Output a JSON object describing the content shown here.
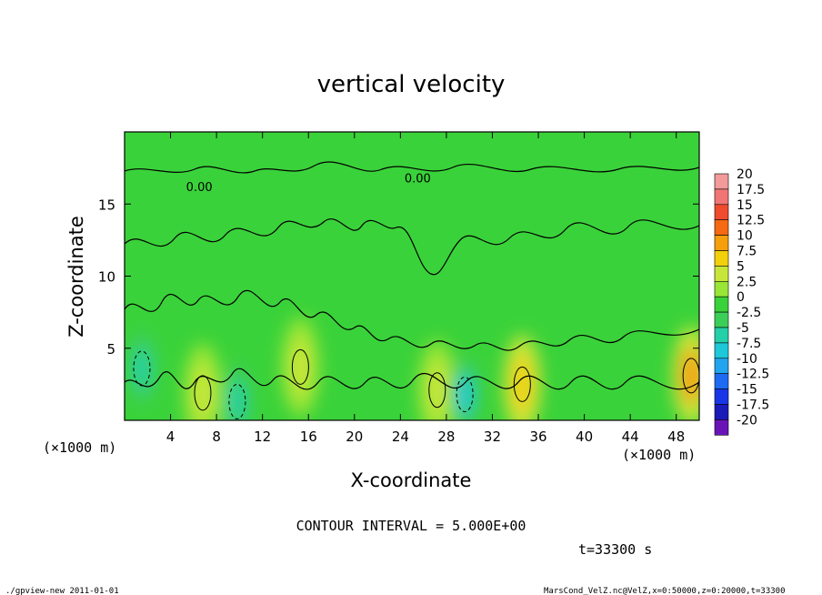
{
  "chart_data": {
    "type": "heatmap",
    "title": "vertical velocity",
    "xlabel": "X-coordinate",
    "ylabel": "Z-coordinate",
    "x_unit_left": "(×1000 m)",
    "x_unit_right": "(×1000 m)",
    "xlim": [
      0,
      50
    ],
    "ylim": [
      0,
      20
    ],
    "x_ticks": [
      4,
      8,
      12,
      16,
      20,
      24,
      28,
      32,
      36,
      40,
      44,
      48
    ],
    "y_ticks": [
      5,
      10,
      15
    ],
    "contour_interval_text": "CONTOUR INTERVAL = 5.000E+00",
    "time_text": "t=33300 s",
    "colorbar": {
      "labels": [
        "20",
        "17.5",
        "15",
        "12.5",
        "10",
        "7.5",
        "5",
        "2.5",
        "0",
        "-2.5",
        "-5",
        "-7.5",
        "-10",
        "-12.5",
        "-15",
        "-17.5",
        "-20"
      ],
      "colors": [
        "#f39a9a",
        "#f27575",
        "#ef4b2e",
        "#f56a12",
        "#f59f0c",
        "#f2d10c",
        "#c8e63a",
        "#9ae636",
        "#3ad23a",
        "#3ccf58",
        "#24d0a8",
        "#1ec8d8",
        "#22a4ef",
        "#1f6af2",
        "#1836e6",
        "#1a1ab8",
        "#6a14b8"
      ]
    },
    "features": [
      {
        "kind": "updraft",
        "x": 6.8,
        "z": 1.9,
        "value": 5
      },
      {
        "kind": "updraft",
        "x": 15.3,
        "z": 3.7,
        "value": 5
      },
      {
        "kind": "updraft",
        "x": 27.2,
        "z": 2.1,
        "value": 5
      },
      {
        "kind": "updraft",
        "x": 34.6,
        "z": 2.5,
        "value": 7.5
      },
      {
        "kind": "updraft",
        "x": 49.3,
        "z": 3.1,
        "value": 10
      },
      {
        "kind": "downdraft",
        "x": 29.6,
        "z": 1.8,
        "value": -7.5
      },
      {
        "kind": "downdraft",
        "x": 1.5,
        "z": 3.6,
        "value": -5
      },
      {
        "kind": "downdraft",
        "x": 9.8,
        "z": 1.3,
        "value": -5
      }
    ],
    "contour_labels": [
      {
        "text": "0.00",
        "x": 6.5,
        "z": 15.9
      },
      {
        "text": "0.00",
        "x": 25.5,
        "z": 16.5
      }
    ]
  },
  "footer": {
    "left": "./gpview-new  2011-01-01",
    "right": "MarsCond_VelZ.nc@VelZ,x=0:50000,z=0:20000,t=33300"
  }
}
